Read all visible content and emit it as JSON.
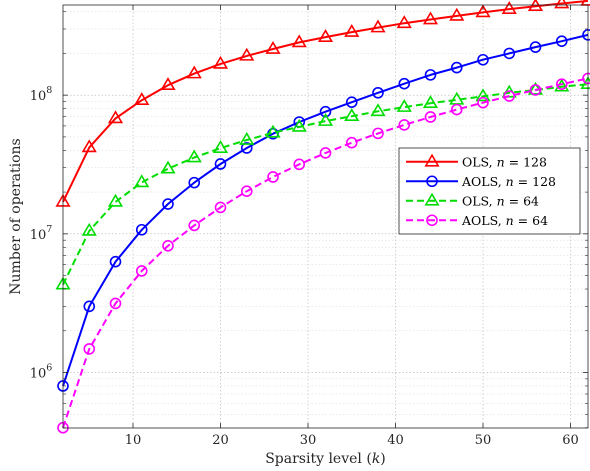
{
  "chart_data": {
    "type": "line",
    "title": "",
    "xlabel": "Sparsity level (",
    "xlabel_var": "k",
    "xlabel_close": ")",
    "ylabel": "Number of operations",
    "xlim": [
      2,
      62
    ],
    "ylim_log10": [
      5.6,
      8.65
    ],
    "yscale": "log",
    "grid": true,
    "legend_position": "right-center",
    "x_ticks": [
      "10",
      "20",
      "30",
      "40",
      "50",
      "60"
    ],
    "y_ticks": [
      {
        "base": "10",
        "exp": "6"
      },
      {
        "base": "10",
        "exp": "7"
      },
      {
        "base": "10",
        "exp": "8"
      }
    ],
    "series": [
      {
        "name": "OLS, ",
        "name_var": "n",
        "name_eq": " = 128",
        "color": "#ff0000",
        "marker": "triangle",
        "dash": "solid",
        "x": [
          2,
          5,
          8,
          11,
          14,
          17,
          20,
          23,
          26,
          29,
          32,
          35,
          38,
          41,
          44,
          47,
          50,
          53,
          56,
          59,
          62
        ],
        "y": [
          17000000,
          42000000,
          68000000,
          92000000,
          118000000,
          143000000,
          168000000,
          192000000,
          215000000,
          240000000,
          262000000,
          285000000,
          307000000,
          330000000,
          351000000,
          373000000,
          395000000,
          417000000,
          438000000,
          458000000,
          478000000
        ]
      },
      {
        "name": "AOLS, ",
        "name_var": "n",
        "name_eq": " = 128",
        "color": "#0000ff",
        "marker": "circle",
        "dash": "solid",
        "x": [
          2,
          5,
          8,
          11,
          14,
          17,
          20,
          23,
          26,
          29,
          32,
          35,
          38,
          41,
          44,
          47,
          50,
          53,
          56,
          59,
          62
        ],
        "y": [
          800000,
          3000000,
          6300000,
          10700000,
          16400000,
          23400000,
          31900000,
          41600000,
          52700000,
          64000000,
          76000000,
          89000000,
          104000000,
          121000000,
          140000000,
          158000000,
          180000000,
          200000000,
          222000000,
          245000000,
          272000000
        ]
      },
      {
        "name": "OLS, ",
        "name_var": "n",
        "name_eq": " = 64",
        "color": "#00dd00",
        "marker": "triangle",
        "dash": "dashed",
        "x": [
          2,
          5,
          8,
          11,
          14,
          17,
          20,
          23,
          26,
          29,
          32,
          35,
          38,
          41,
          44,
          47,
          50,
          53,
          56,
          59,
          62
        ],
        "y": [
          4300000,
          10500000,
          17000000,
          23500000,
          29500000,
          35500000,
          41500000,
          47500000,
          53500000,
          59000000,
          65000000,
          70500000,
          76500000,
          82000000,
          87500000,
          92500000,
          98000000,
          104000000,
          109000000,
          115000000,
          120000000
        ]
      },
      {
        "name": "AOLS, ",
        "name_var": "n",
        "name_eq": " = 64",
        "color": "#ff00ff",
        "marker": "circle",
        "dash": "dashed",
        "x": [
          2,
          5,
          8,
          11,
          14,
          17,
          20,
          23,
          26,
          29,
          32,
          35,
          38,
          41,
          44,
          47,
          50,
          53,
          56,
          59,
          62
        ],
        "y": [
          400000,
          1480000,
          3150000,
          5400000,
          8200000,
          11500000,
          15500000,
          20300000,
          25700000,
          31700000,
          38300000,
          45400000,
          53000000,
          61000000,
          69600000,
          78700000,
          88300000,
          98500000,
          109000000,
          120000000,
          132000000
        ]
      }
    ]
  }
}
